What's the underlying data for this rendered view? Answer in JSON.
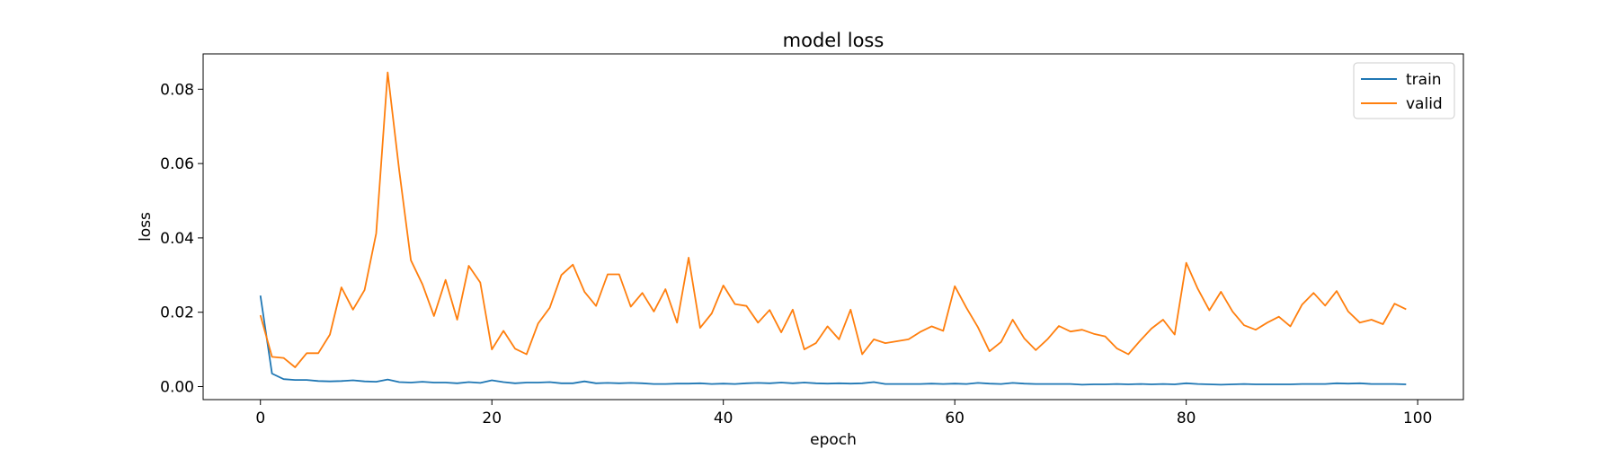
{
  "chart_data": {
    "type": "line",
    "title": "model loss",
    "xlabel": "epoch",
    "ylabel": "loss",
    "xlim": [
      -4.95,
      103.95
    ],
    "ylim": [
      -0.0035,
      0.0895
    ],
    "x_ticks": [
      0,
      20,
      40,
      60,
      80,
      100
    ],
    "x_tick_labels": [
      "0",
      "20",
      "40",
      "60",
      "80",
      "100"
    ],
    "y_ticks": [
      0.0,
      0.02,
      0.04,
      0.06,
      0.08
    ],
    "y_tick_labels": [
      "0.00",
      "0.02",
      "0.04",
      "0.06",
      "0.08"
    ],
    "grid": false,
    "legend_position": "top-right",
    "x": [
      0,
      1,
      2,
      3,
      4,
      5,
      6,
      7,
      8,
      9,
      10,
      11,
      12,
      13,
      14,
      15,
      16,
      17,
      18,
      19,
      20,
      21,
      22,
      23,
      24,
      25,
      26,
      27,
      28,
      29,
      30,
      31,
      32,
      33,
      34,
      35,
      36,
      37,
      38,
      39,
      40,
      41,
      42,
      43,
      44,
      45,
      46,
      47,
      48,
      49,
      50,
      51,
      52,
      53,
      54,
      55,
      56,
      57,
      58,
      59,
      60,
      61,
      62,
      63,
      64,
      65,
      66,
      67,
      68,
      69,
      70,
      71,
      72,
      73,
      74,
      75,
      76,
      77,
      78,
      79,
      80,
      81,
      82,
      83,
      84,
      85,
      86,
      87,
      88,
      89,
      90,
      91,
      92,
      93,
      94,
      95,
      96,
      97,
      98,
      99
    ],
    "series": [
      {
        "name": "train",
        "color": "#1f77b4",
        "values": [
          0.0245,
          0.0035,
          0.002,
          0.0018,
          0.0018,
          0.0015,
          0.0014,
          0.0015,
          0.0017,
          0.0014,
          0.0013,
          0.0019,
          0.0012,
          0.0011,
          0.0013,
          0.0011,
          0.0011,
          0.0009,
          0.0012,
          0.001,
          0.0017,
          0.0012,
          0.0009,
          0.0011,
          0.0011,
          0.0012,
          0.0009,
          0.0009,
          0.0014,
          0.0009,
          0.001,
          0.0009,
          0.001,
          0.0009,
          0.0007,
          0.0007,
          0.0008,
          0.0008,
          0.0009,
          0.0007,
          0.0008,
          0.0007,
          0.0009,
          0.001,
          0.0009,
          0.0011,
          0.0009,
          0.0011,
          0.0009,
          0.0008,
          0.0009,
          0.0008,
          0.0009,
          0.0012,
          0.0007,
          0.0007,
          0.0007,
          0.0007,
          0.0008,
          0.0007,
          0.0008,
          0.0007,
          0.001,
          0.0008,
          0.0007,
          0.001,
          0.0008,
          0.0007,
          0.0007,
          0.0007,
          0.0007,
          0.0005,
          0.0006,
          0.0006,
          0.0007,
          0.0006,
          0.0007,
          0.0006,
          0.0007,
          0.0006,
          0.0009,
          0.0007,
          0.0006,
          0.0005,
          0.0006,
          0.0007,
          0.0006,
          0.0006,
          0.0006,
          0.0006,
          0.0007,
          0.0007,
          0.0007,
          0.0009,
          0.0008,
          0.0009,
          0.0007,
          0.0007,
          0.0007,
          0.0006
        ]
      },
      {
        "name": "valid",
        "color": "#ff7f0e",
        "values": [
          0.0192,
          0.008,
          0.0077,
          0.0052,
          0.009,
          0.009,
          0.014,
          0.0267,
          0.0207,
          0.026,
          0.0412,
          0.0845,
          0.058,
          0.034,
          0.0275,
          0.019,
          0.0287,
          0.018,
          0.0325,
          0.028,
          0.01,
          0.015,
          0.0102,
          0.0087,
          0.017,
          0.0212,
          0.03,
          0.0328,
          0.0255,
          0.0217,
          0.0302,
          0.0302,
          0.0215,
          0.0252,
          0.0202,
          0.0262,
          0.0172,
          0.0347,
          0.0158,
          0.0197,
          0.0272,
          0.0222,
          0.0217,
          0.0172,
          0.0206,
          0.0146,
          0.0207,
          0.01,
          0.0117,
          0.0162,
          0.0127,
          0.0207,
          0.0087,
          0.0127,
          0.0117,
          0.0122,
          0.0127,
          0.0147,
          0.0162,
          0.015,
          0.027,
          0.0212,
          0.016,
          0.0095,
          0.012,
          0.018,
          0.013,
          0.0098,
          0.0127,
          0.0163,
          0.0148,
          0.0153,
          0.0142,
          0.0135,
          0.0103,
          0.0087,
          0.0123,
          0.0156,
          0.018,
          0.014,
          0.0333,
          0.0263,
          0.0205,
          0.0255,
          0.0202,
          0.0165,
          0.0153,
          0.0172,
          0.0188,
          0.0162,
          0.022,
          0.0252,
          0.0218,
          0.0257,
          0.0202,
          0.0172,
          0.018,
          0.0168,
          0.0223,
          0.0208
        ]
      }
    ]
  }
}
